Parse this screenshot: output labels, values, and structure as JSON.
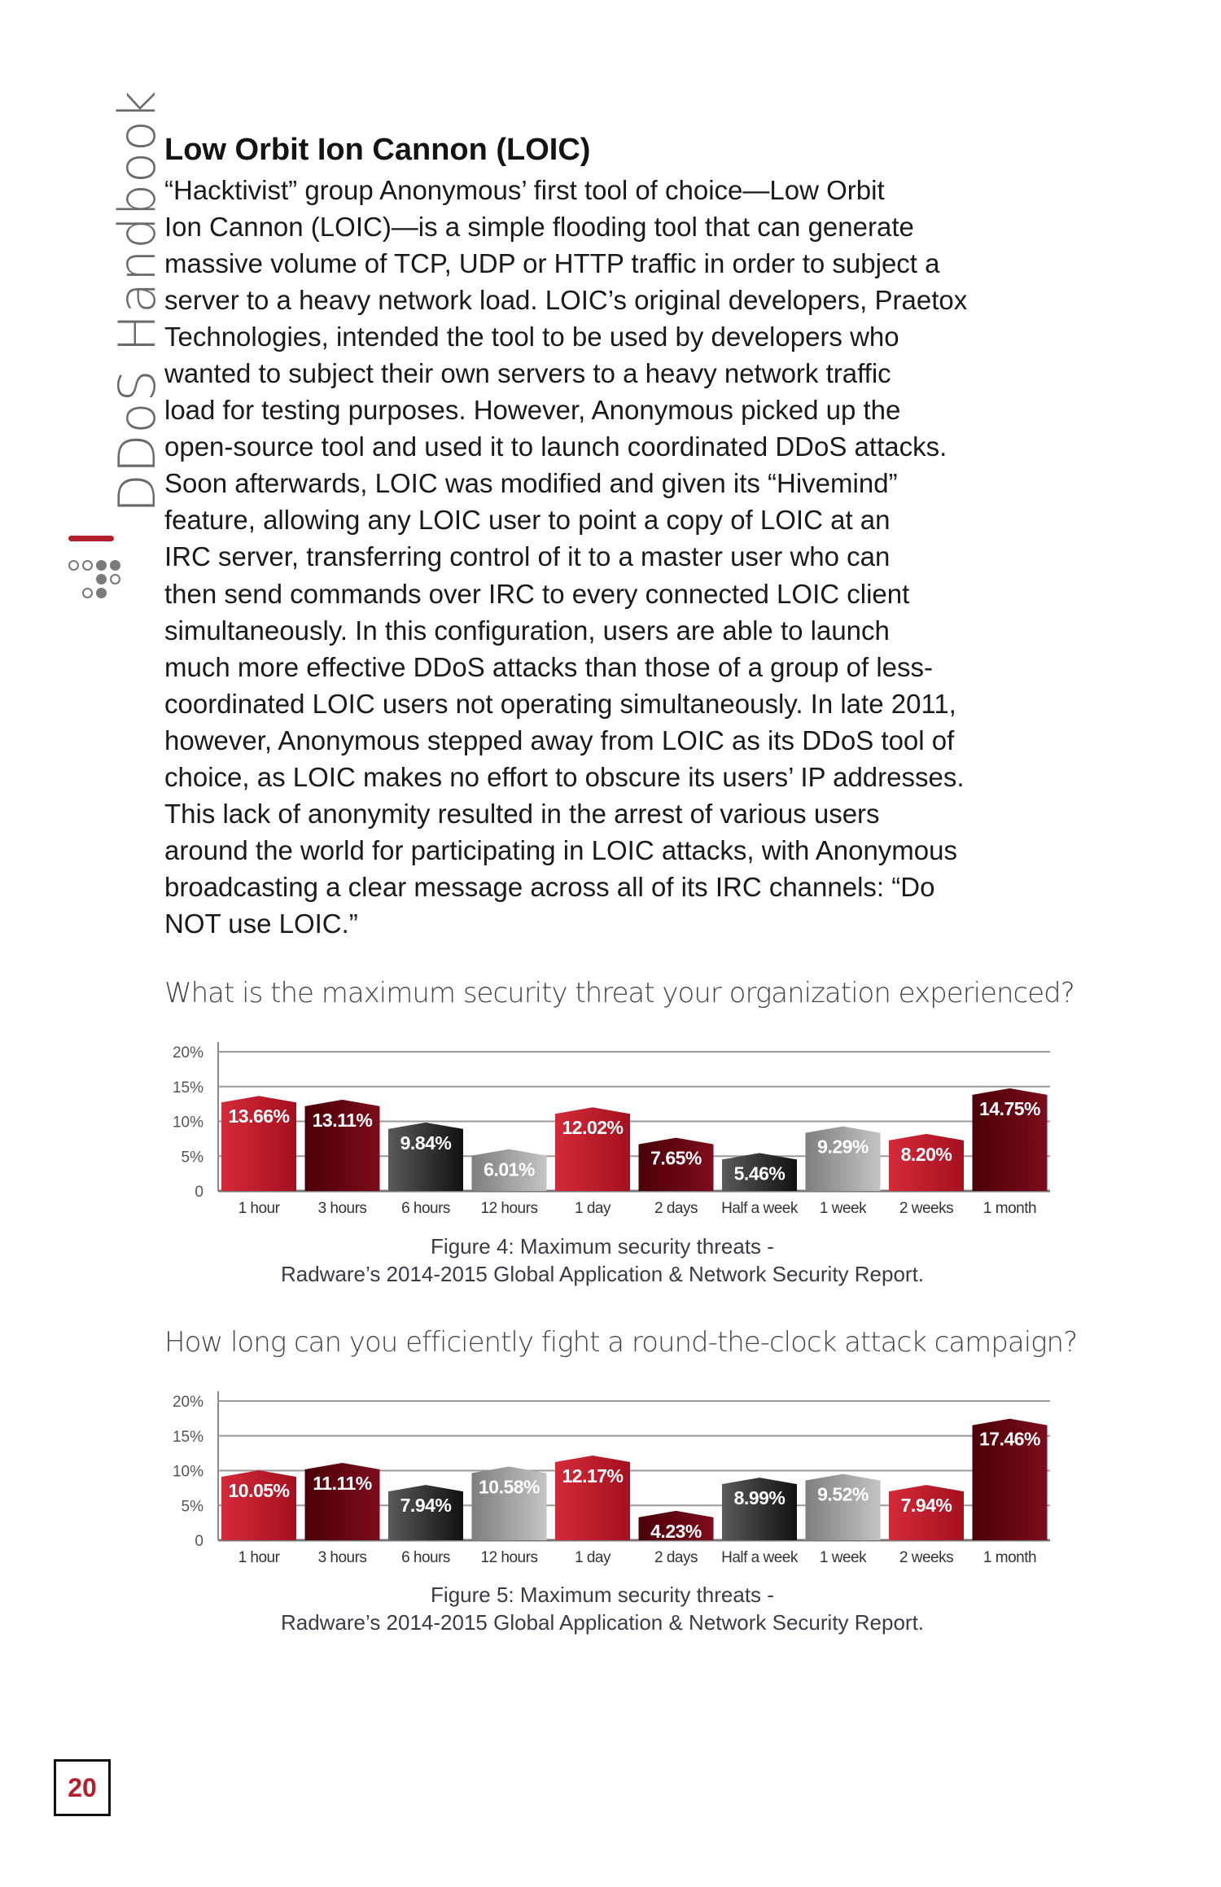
{
  "sidebar": {
    "title": "DDoS Handbook"
  },
  "article": {
    "heading": "Low Orbit Ion Cannon (LOIC)",
    "lines": [
      "“Hacktivist” group Anonymous’ first tool of choice—Low Orbit",
      "Ion Cannon (LOIC)—is a simple flooding tool that can generate",
      "massive volume of TCP, UDP or HTTP traffic in order to subject a",
      "server to a heavy network load. LOIC’s original developers, Praetox",
      "Technologies, intended the tool to be used by developers who",
      "wanted to subject their own servers to a heavy network traffic",
      "load for testing purposes. However, Anonymous picked up the",
      "open-source tool and used it to launch coordinated DDoS attacks.",
      "Soon afterwards, LOIC was modified and given its “Hivemind”",
      "feature, allowing any LOIC user to point a copy of LOIC at an",
      "IRC server, transferring control of it to a master user who can",
      "then send commands over IRC to every connected LOIC client",
      "simultaneously. In this configuration, users are able to launch",
      "much more effective DDoS attacks than those of a group of less-",
      "coordinated LOIC users not operating simultaneously. In late 2011,",
      "however, Anonymous stepped away from LOIC as its DDoS tool of",
      "choice, as LOIC makes no effort to obscure its users’ IP addresses.",
      "This lack of anonymity resulted in the arrest of various users",
      "around the world for participating in LOIC attacks, with Anonymous",
      "broadcasting a clear message across all of its IRC channels: “Do",
      "NOT use LOIC.”"
    ]
  },
  "colors": {
    "red": "#c41e30",
    "maroon": "#6b0715",
    "dark_gray": "#2a2a2a",
    "light_gray": "#9a9a9a",
    "accent": "#b3202c"
  },
  "chart_data": [
    {
      "type": "bar",
      "title": "What is the maximum security threat your organization experienced?",
      "categories": [
        "1 hour",
        "3 hours",
        "6 hours",
        "12 hours",
        "1 day",
        "2 days",
        "Half a week",
        "1 week",
        "2 weeks",
        "1 month"
      ],
      "values": [
        13.66,
        13.11,
        9.84,
        6.01,
        12.02,
        7.65,
        5.46,
        9.29,
        8.2,
        14.75
      ],
      "value_labels": [
        "13.66%",
        "13.11%",
        "9.84%",
        "6.01%",
        "12.02%",
        "7.65%",
        "5.46%",
        "9.29%",
        "8.20%",
        "14.75%"
      ],
      "bar_colors": [
        "red",
        "maroon",
        "dark_gray",
        "light_gray",
        "red",
        "maroon",
        "dark_gray",
        "light_gray",
        "red",
        "maroon"
      ],
      "yticks": [
        "0",
        "5%",
        "10%",
        "15%",
        "20%"
      ],
      "ylim": [
        0,
        20
      ],
      "grid": true,
      "caption": [
        "Figure 4: Maximum security threats -",
        "Radware’s 2014-2015 Global Application & Network Security Report."
      ]
    },
    {
      "type": "bar",
      "title": "How long can you efficiently fight a round-the-clock attack campaign?",
      "categories": [
        "1 hour",
        "3 hours",
        "6 hours",
        "12 hours",
        "1 day",
        "2 days",
        "Half a week",
        "1 week",
        "2 weeks",
        "1 month"
      ],
      "values": [
        10.05,
        11.11,
        7.94,
        10.58,
        12.17,
        4.23,
        8.99,
        9.52,
        7.94,
        17.46
      ],
      "value_labels": [
        "10.05%",
        "11.11%",
        "7.94%",
        "10.58%",
        "12.17%",
        "4.23%",
        "8.99%",
        "9.52%",
        "7.94%",
        "17.46%"
      ],
      "bar_colors": [
        "red",
        "maroon",
        "dark_gray",
        "light_gray",
        "red",
        "maroon",
        "dark_gray",
        "light_gray",
        "red",
        "maroon"
      ],
      "yticks": [
        "0",
        "5%",
        "10%",
        "15%",
        "20%"
      ],
      "ylim": [
        0,
        20
      ],
      "grid": true,
      "caption": [
        "Figure 5: Maximum security threats -",
        "Radware’s 2014-2015 Global Application & Network Security Report."
      ]
    }
  ],
  "footer": {
    "page_number": "20"
  }
}
